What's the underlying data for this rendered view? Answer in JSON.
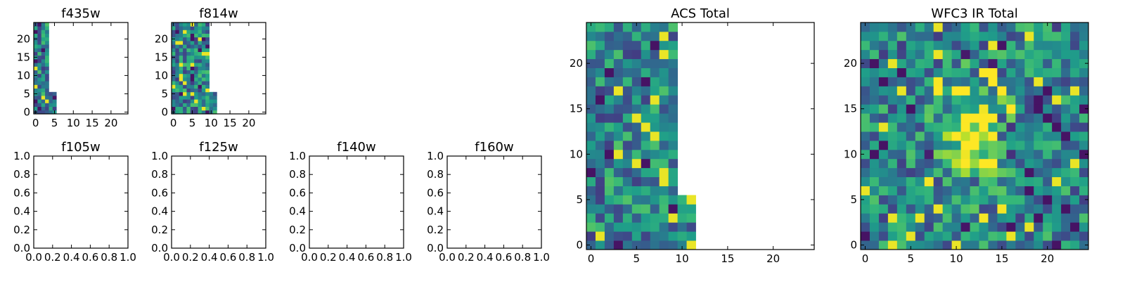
{
  "colormap": "viridis",
  "chart_data": [
    {
      "id": "f435w",
      "type": "heatmap",
      "title": "f435w",
      "xlim": [
        -0.5,
        24.5
      ],
      "ylim": [
        -0.5,
        24.5
      ],
      "xticks": [
        0,
        5,
        10,
        15,
        20
      ],
      "yticks": [
        0,
        5,
        10,
        15,
        20
      ],
      "data_extent": {
        "cols_bottom": 6,
        "cols_top": 4,
        "split_row": 5
      },
      "seed": 11
    },
    {
      "id": "f814w",
      "type": "heatmap",
      "title": "f814w",
      "xlim": [
        -0.5,
        24.5
      ],
      "ylim": [
        -0.5,
        24.5
      ],
      "xticks": [
        0,
        5,
        10,
        15,
        20
      ],
      "yticks": [
        0,
        5,
        10,
        15,
        20
      ],
      "data_extent": {
        "cols_bottom": 12,
        "cols_top": 10,
        "split_row": 5
      },
      "seed": 29
    },
    {
      "id": "f105w",
      "type": "heatmap",
      "title": "f105w",
      "xlim": [
        0,
        1
      ],
      "ylim": [
        0,
        1
      ],
      "xticks": [
        "0.0",
        "0.2",
        "0.4",
        "0.6",
        "0.8",
        "1.0"
      ],
      "yticks": [
        "0.0",
        "0.2",
        "0.4",
        "0.6",
        "0.8",
        "1.0"
      ],
      "empty": true
    },
    {
      "id": "f125w",
      "type": "heatmap",
      "title": "f125w",
      "xlim": [
        0,
        1
      ],
      "ylim": [
        0,
        1
      ],
      "xticks": [
        "0.0",
        "0.2",
        "0.4",
        "0.6",
        "0.8",
        "1.0"
      ],
      "yticks": [
        "0.0",
        "0.2",
        "0.4",
        "0.6",
        "0.8",
        "1.0"
      ],
      "empty": true
    },
    {
      "id": "f140w",
      "type": "heatmap",
      "title": "f140w",
      "xlim": [
        0,
        1
      ],
      "ylim": [
        0,
        1
      ],
      "xticks": [
        "0.0",
        "0.2",
        "0.4",
        "0.6",
        "0.8",
        "1.0"
      ],
      "yticks": [
        "0.0",
        "0.2",
        "0.4",
        "0.6",
        "0.8",
        "1.0"
      ],
      "empty": true
    },
    {
      "id": "f160w",
      "type": "heatmap",
      "title": "f160w",
      "xlim": [
        0,
        1
      ],
      "ylim": [
        0,
        1
      ],
      "xticks": [
        "0.0",
        "0.2",
        "0.4",
        "0.6",
        "0.8",
        "1.0"
      ],
      "yticks": [
        "0.0",
        "0.2",
        "0.4",
        "0.6",
        "0.8",
        "1.0"
      ],
      "empty": true
    },
    {
      "id": "acs_total",
      "type": "heatmap",
      "title": "ACS Total",
      "xlim": [
        -0.5,
        24.5
      ],
      "ylim": [
        -0.5,
        24.5
      ],
      "xticks": [
        0,
        5,
        10,
        15,
        20
      ],
      "yticks": [
        0,
        5,
        10,
        15,
        20
      ],
      "data_extent": {
        "cols_bottom": 12,
        "cols_top": 10,
        "split_row": 5
      },
      "seed": 53
    },
    {
      "id": "wfc3_ir_total",
      "type": "heatmap",
      "title": "WFC3 IR Total",
      "xlim": [
        -0.5,
        24.5
      ],
      "ylim": [
        -0.5,
        24.5
      ],
      "xticks": [
        0,
        5,
        10,
        15,
        20
      ],
      "yticks": [
        0,
        5,
        10,
        15,
        20
      ],
      "data_extent": {
        "cols_bottom": 25,
        "cols_top": 25,
        "split_row": 0
      },
      "blob": {
        "x": 12,
        "y": 12,
        "sx": 2.2,
        "sy": 3.5
      },
      "seed": 71
    }
  ]
}
